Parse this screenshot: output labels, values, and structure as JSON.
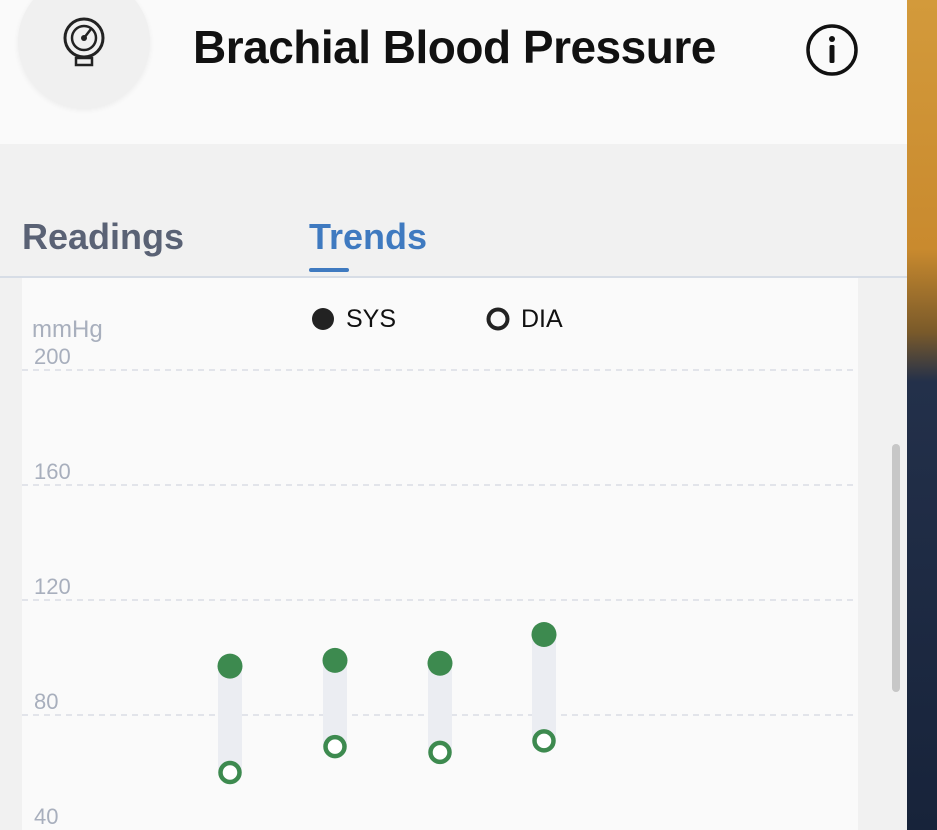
{
  "header": {
    "title": "Brachial Blood Pressure",
    "app_icon": "blood-pressure-gauge-icon",
    "info_icon": "info-icon"
  },
  "tabs": [
    {
      "label": "Readings",
      "active": false
    },
    {
      "label": "Trends",
      "active": true
    }
  ],
  "colors": {
    "accent": "#3f7ac0",
    "sys_dot": "#3d8a4f",
    "dia_ring": "#3d8a4f",
    "range_bar": "#ebedf2",
    "grid": "#d9dde5",
    "axis_text": "#a8afbd"
  },
  "chart_data": {
    "type": "scatter",
    "ylabel": "mmHg",
    "yticks": [
      200,
      160,
      120,
      80,
      40
    ],
    "ylim": [
      40,
      200
    ],
    "grid": true,
    "legend": [
      {
        "label": "SYS",
        "marker": "filled"
      },
      {
        "label": "DIA",
        "marker": "ring"
      }
    ],
    "legend_position": "top-center",
    "readings": [
      {
        "sys": 97,
        "dia": 60
      },
      {
        "sys": 99,
        "dia": 69
      },
      {
        "sys": 98,
        "dia": 67
      },
      {
        "sys": 108,
        "dia": 71
      }
    ]
  }
}
